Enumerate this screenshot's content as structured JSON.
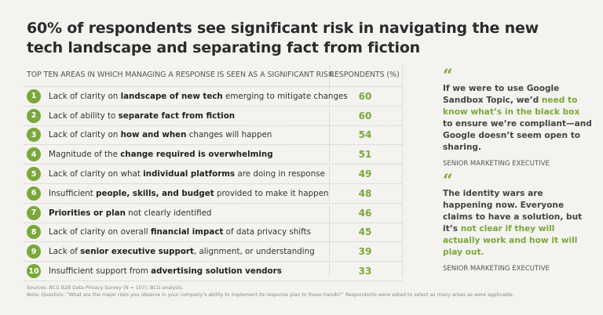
{
  "title": "60% of respondents see significant risk in navigating the new tech landscape and separating fact from fiction",
  "chart_data": {
    "type": "table",
    "columns": [
      "TOP TEN AREAS IN WHICH MANAGING A RESPONSE IS SEEN AS A SIGNIFICANT RISK",
      "RESPONDENTS (%)"
    ],
    "accent_color": "#7aa83a",
    "rows": [
      {
        "rank": "1",
        "pre": "Lack of clarity on ",
        "bold": "landscape of new tech",
        "post": " emerging to mitigate changes",
        "value": 60
      },
      {
        "rank": "2",
        "pre": "Lack of ability to ",
        "bold": "separate fact from fiction",
        "post": "",
        "value": 60
      },
      {
        "rank": "3",
        "pre": "Lack of clarity on ",
        "bold": "how and when",
        "post": " changes will happen",
        "value": 54
      },
      {
        "rank": "4",
        "pre": "Magnitude of the ",
        "bold": "change required is overwhelming",
        "post": "",
        "value": 51
      },
      {
        "rank": "5",
        "pre": "Lack of clarity on what ",
        "bold": "individual platforms",
        "post": " are doing in response",
        "value": 49
      },
      {
        "rank": "6",
        "pre": "Insufficient ",
        "bold": "people, skills, and budget",
        "post": " provided to make it happen",
        "value": 48
      },
      {
        "rank": "7",
        "pre": "",
        "bold": "Priorities or plan",
        "post": " not clearly identified",
        "value": 46
      },
      {
        "rank": "8",
        "pre": "Lack of clarity on overall ",
        "bold": "financial impact",
        "post": " of data privacy shifts",
        "value": 45
      },
      {
        "rank": "9",
        "pre": "Lack of ",
        "bold": "senior executive support",
        "post": ", alignment, or understanding",
        "value": 39
      },
      {
        "rank": "10",
        "pre": "Insufficient support from ",
        "bold": "advertising solution vendors",
        "post": "",
        "value": 33
      }
    ]
  },
  "quotes": [
    {
      "mark": "“",
      "pre": "If we were to use Google Sandbox Topic, we’d ",
      "highlight": "need to know what’s in the black box",
      "post": " to ensure we’re compliant—and Google doesn’t seem open to sharing.",
      "source": "SENIOR MARKETING EXECUTIVE"
    },
    {
      "mark": "“",
      "pre": "The identity wars are happening now. Everyone claims to have a solution, but it’s ",
      "highlight": "not clear if they will actually work and how it will play out.",
      "post": "",
      "source": "SENIOR MARKETING EXECUTIVE"
    }
  ],
  "notes": {
    "sources": "Sources: BCG B2B Data Privacy Survey (N = 107); BCG analysis.",
    "note": "Note: Question: “What are the major risks you observe in your company’s ability to implement its response plan to these trends?” Respondents were asked to select as many areas as were applicable."
  }
}
